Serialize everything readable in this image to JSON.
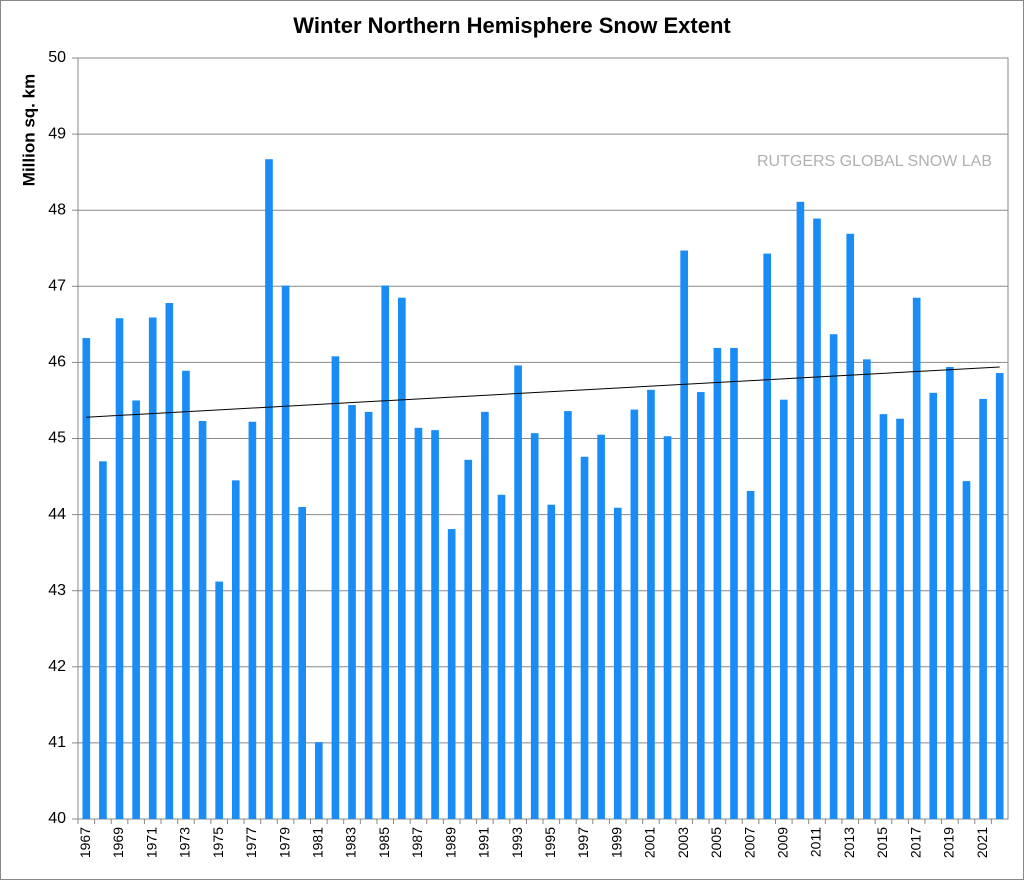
{
  "chart_data": {
    "type": "bar",
    "title": "Winter Northern Hemisphere Snow Extent",
    "y_label": "Million sq. km",
    "annotation": "RUTGERS GLOBAL SNOW LAB",
    "categories": [
      "1967",
      null,
      "1969",
      null,
      "1971",
      null,
      "1973",
      null,
      "1975",
      null,
      "1977",
      null,
      "1979",
      null,
      "1981",
      null,
      "1983",
      null,
      "1985",
      null,
      "1987",
      null,
      "1989",
      null,
      "1991",
      null,
      "1993",
      null,
      "1995",
      null,
      "1997",
      null,
      "1999",
      null,
      "2001",
      null,
      "2003",
      null,
      "2005",
      null,
      "2007",
      null,
      "2009",
      null,
      "2011",
      null,
      "2013",
      null,
      "2015",
      null,
      "2017",
      null,
      "2019",
      null,
      "2021",
      null
    ],
    "values": [
      46.32,
      44.7,
      46.58,
      45.5,
      46.59,
      46.78,
      45.89,
      45.23,
      43.12,
      44.45,
      45.22,
      48.67,
      47.01,
      44.1,
      41.01,
      46.08,
      45.44,
      45.35,
      47.01,
      46.85,
      45.14,
      45.11,
      43.81,
      44.72,
      45.35,
      44.26,
      45.96,
      45.07,
      44.13,
      45.36,
      44.76,
      45.05,
      44.09,
      45.38,
      45.64,
      45.03,
      47.47,
      45.61,
      46.19,
      46.19,
      44.31,
      47.43,
      45.51,
      48.11,
      47.89,
      46.37,
      47.69,
      46.04,
      45.32,
      45.26,
      46.85,
      45.6,
      45.94,
      44.44,
      45.52,
      45.86
    ],
    "color": "#1a8cf5",
    "trend_line": {
      "values": [
        45.28,
        45.94
      ],
      "color": "#000000"
    },
    "ylim": [
      40,
      50
    ],
    "yticks": [
      40,
      41,
      42,
      43,
      44,
      45,
      46,
      47,
      48,
      49,
      50
    ],
    "grid": true
  }
}
